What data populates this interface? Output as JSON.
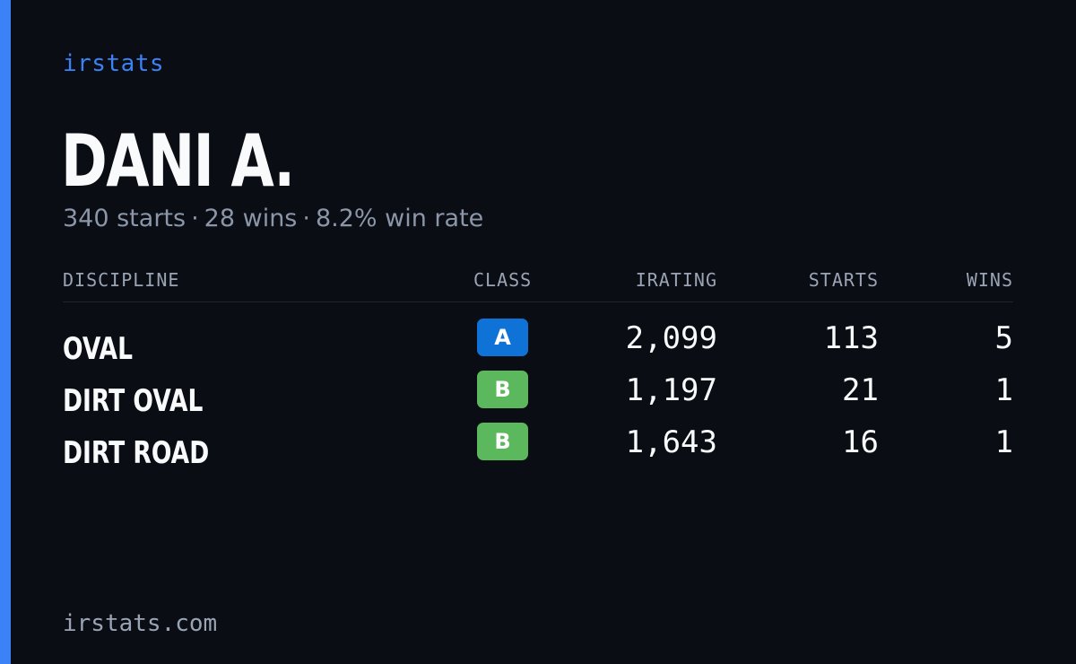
{
  "brand": "irstats",
  "player": {
    "name": "DANI A.",
    "starts": "340 starts",
    "wins": "28 wins",
    "win_rate": "8.2% win rate",
    "separator": "·"
  },
  "table": {
    "headers": {
      "discipline": "DISCIPLINE",
      "class": "CLASS",
      "irating": "IRATING",
      "starts": "STARTS",
      "wins": "WINS"
    },
    "rows": [
      {
        "discipline": "OVAL",
        "class": "A",
        "class_color": "#0f72d6",
        "irating": "2,099",
        "starts": "113",
        "wins": "5"
      },
      {
        "discipline": "DIRT OVAL",
        "class": "B",
        "class_color": "#5cb85c",
        "irating": "1,197",
        "starts": "21",
        "wins": "1"
      },
      {
        "discipline": "DIRT ROAD",
        "class": "B",
        "class_color": "#5cb85c",
        "irating": "1,643",
        "starts": "16",
        "wins": "1"
      }
    ]
  },
  "footer": {
    "domain": "irstats.com"
  },
  "colors": {
    "accent": "#3b82f6",
    "background": "#0a0d14"
  }
}
